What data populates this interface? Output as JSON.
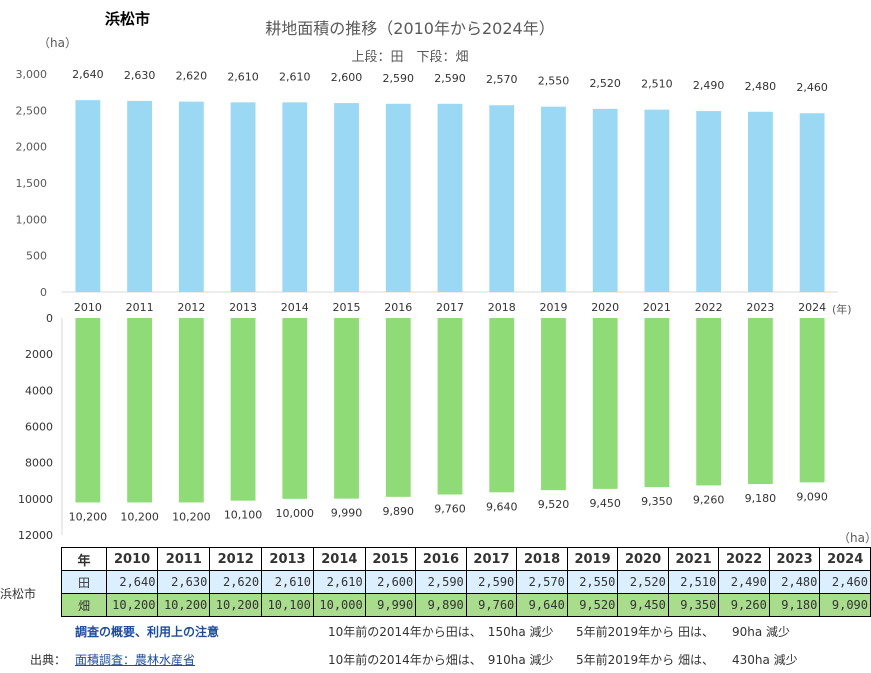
{
  "header": {
    "city": "浜松市",
    "title": "耕地面積の推移（2010年から2024年）",
    "subtitle": "上段：田　下段：畑",
    "unit_top": "（ha）",
    "unit_bottom": "（ha）",
    "year_suffix": "(年)",
    "label_ta": "田",
    "label_hata": "畑"
  },
  "chart_data": [
    {
      "type": "bar",
      "name": "田",
      "categories": [
        "2010",
        "2011",
        "2012",
        "2013",
        "2014",
        "2015",
        "2016",
        "2017",
        "2018",
        "2019",
        "2020",
        "2021",
        "2022",
        "2023",
        "2024"
      ],
      "values": [
        2640,
        2630,
        2620,
        2610,
        2610,
        2600,
        2590,
        2590,
        2570,
        2550,
        2520,
        2510,
        2490,
        2480,
        2460
      ],
      "value_labels": [
        "2,640",
        "2,630",
        "2,620",
        "2,610",
        "2,610",
        "2,600",
        "2,590",
        "2,590",
        "2,570",
        "2,550",
        "2,520",
        "2,510",
        "2,490",
        "2,480",
        "2,460"
      ],
      "ylim": [
        0,
        3000
      ],
      "yticks": [
        "0",
        "500",
        "1,000",
        "1,500",
        "2,000",
        "2,500",
        "3,000"
      ],
      "color": "#9ad8f4"
    },
    {
      "type": "bar",
      "name": "畑",
      "orientation": "inverted",
      "categories": [
        "2010",
        "2011",
        "2012",
        "2013",
        "2014",
        "2015",
        "2016",
        "2017",
        "2018",
        "2019",
        "2020",
        "2021",
        "2022",
        "2023",
        "2024"
      ],
      "values": [
        10200,
        10200,
        10200,
        10100,
        10000,
        9990,
        9890,
        9760,
        9640,
        9520,
        9450,
        9350,
        9260,
        9180,
        9090
      ],
      "value_labels": [
        "10,200",
        "10,200",
        "10,200",
        "10,100",
        "10,000",
        "9,990",
        "9,890",
        "9,760",
        "9,640",
        "9,520",
        "9,450",
        "9,350",
        "9,260",
        "9,180",
        "9,090"
      ],
      "ylim": [
        0,
        12000
      ],
      "yticks": [
        "0",
        "2000",
        "4000",
        "6000",
        "8000",
        "10000",
        "12000"
      ],
      "color": "#8fdb77"
    }
  ],
  "table": {
    "city": "浜松市",
    "year_header": "年",
    "years": [
      "2010",
      "2011",
      "2012",
      "2013",
      "2014",
      "2015",
      "2016",
      "2017",
      "2018",
      "2019",
      "2020",
      "2021",
      "2022",
      "2023",
      "2024"
    ],
    "ta_label": "田",
    "ta": [
      "2,640",
      "2,630",
      "2,620",
      "2,610",
      "2,610",
      "2,600",
      "2,590",
      "2,590",
      "2,570",
      "2,550",
      "2,520",
      "2,510",
      "2,490",
      "2,480",
      "2,460"
    ],
    "hata_label": "畑",
    "hata": [
      "10,200",
      "10,200",
      "10,200",
      "10,100",
      "10,000",
      "9,990",
      "9,890",
      "9,760",
      "9,640",
      "9,520",
      "9,450",
      "9,350",
      "9,260",
      "9,180",
      "9,090"
    ]
  },
  "footer": {
    "notes_link": "調査の概要、利用上の注意",
    "source_label": "出典：",
    "source_link": "面積調査：農林水産省",
    "ta_10yr": "10年前の2014年から田は、　150ha 減少",
    "ta_5yr": "5年前2019年から 田は、　　90ha 減少",
    "hata_10yr": "10年前の2014年から畑は、　910ha 減少",
    "hata_5yr": "5年前2019年から 畑は、　　430ha 減少"
  }
}
